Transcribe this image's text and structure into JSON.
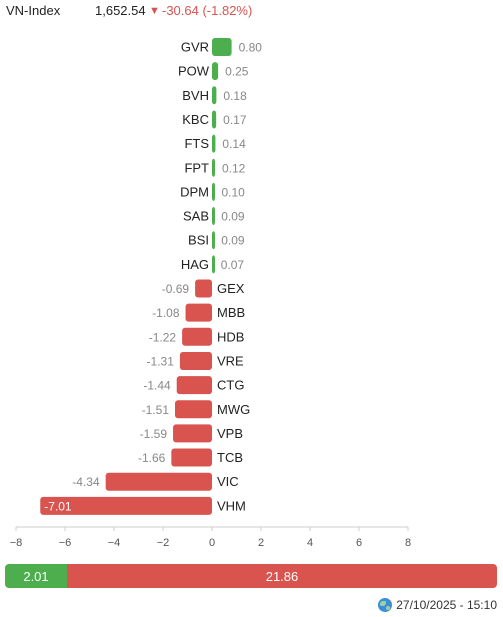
{
  "header": {
    "index_name": "VN-Index",
    "index_value": "1,652.54",
    "arrow": "▼",
    "index_change": "-30.64 (-1.82%)"
  },
  "colors": {
    "up": "#4cae4c",
    "down": "#d9534f",
    "axis": "#888888"
  },
  "chart_data": {
    "type": "bar",
    "orientation": "horizontal",
    "categories": [
      "GVR",
      "POW",
      "BVH",
      "KBC",
      "FTS",
      "FPT",
      "DPM",
      "SAB",
      "BSI",
      "HAG",
      "GEX",
      "MBB",
      "HDB",
      "VRE",
      "CTG",
      "MWG",
      "VPB",
      "TCB",
      "VIC",
      "VHM"
    ],
    "values": [
      0.8,
      0.25,
      0.18,
      0.17,
      0.14,
      0.12,
      0.1,
      0.09,
      0.09,
      0.07,
      -0.69,
      -1.08,
      -1.22,
      -1.31,
      -1.44,
      -1.51,
      -1.59,
      -1.66,
      -4.34,
      -7.01
    ],
    "labels": [
      "0.80",
      "0.25",
      "0.18",
      "0.17",
      "0.14",
      "0.12",
      "0.10",
      "0.09",
      "0.09",
      "0.07",
      "-0.69",
      "-1.08",
      "-1.22",
      "-1.31",
      "-1.44",
      "-1.51",
      "-1.59",
      "-1.66",
      "-4.34",
      "-7.01"
    ],
    "xlim": [
      -8,
      8
    ],
    "xticks": [
      -8,
      -6,
      -4,
      -2,
      0,
      2,
      4,
      6,
      8
    ],
    "xtick_labels": [
      "−8",
      "−6",
      "−4",
      "−2",
      "0",
      "2",
      "4",
      "6",
      "8"
    ],
    "title": "",
    "xlabel": "",
    "ylabel": "",
    "grid": false
  },
  "summary": {
    "up_total": 2.01,
    "up_label": "2.01",
    "down_total": 21.86,
    "down_label": "21.86"
  },
  "timestamp": "27/10/2025 - 15:10"
}
